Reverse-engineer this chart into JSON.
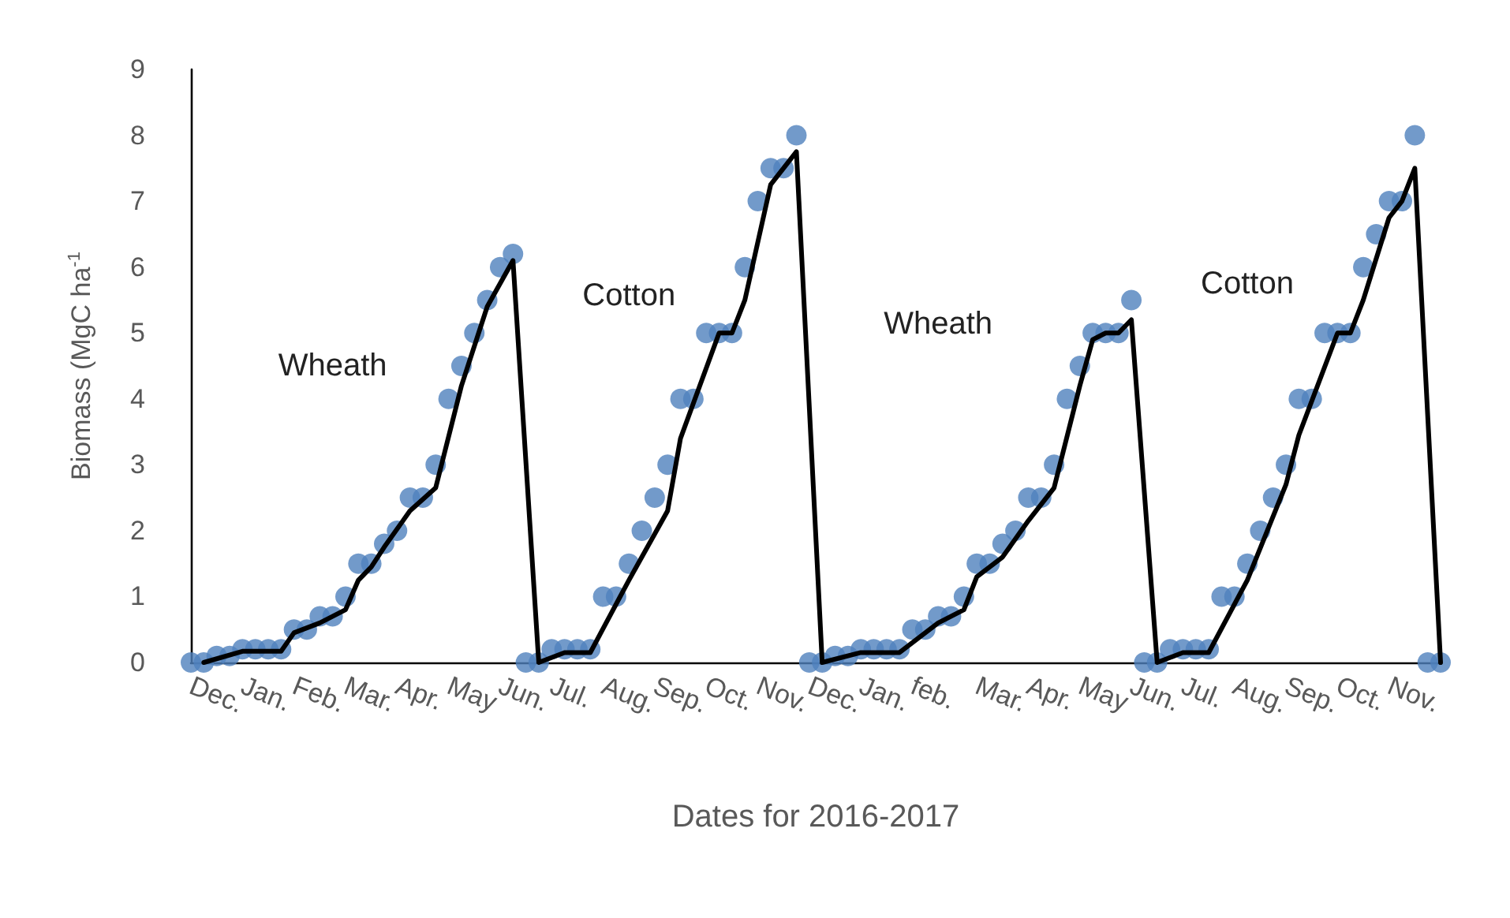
{
  "chart_data": {
    "type": "scatter",
    "xlabel": "Dates for 2016-2017",
    "ylabel": "Biomass (MgC ha$^{-1}$",
    "ylim": [
      0,
      9
    ],
    "yticks": [
      0,
      1,
      2,
      3,
      4,
      5,
      6,
      7,
      8,
      9
    ],
    "categories": [
      "Dec.",
      null,
      null,
      null,
      "Jan.",
      null,
      null,
      null,
      "Feb.",
      null,
      null,
      null,
      "Mar.",
      null,
      null,
      null,
      "Apr.",
      null,
      null,
      null,
      "May",
      null,
      null,
      null,
      "Jun.",
      null,
      null,
      null,
      "Jul.",
      null,
      null,
      null,
      "Aug.",
      null,
      null,
      null,
      "Sep.",
      null,
      null,
      null,
      "Oct.",
      null,
      null,
      null,
      "Nov.",
      null,
      null,
      null,
      "Dec.",
      null,
      null,
      null,
      "Jan.",
      null,
      null,
      null,
      "feb.",
      null,
      null,
      null,
      null,
      "Mar.",
      null,
      null,
      null,
      "Apr.",
      null,
      null,
      null,
      "May",
      null,
      null,
      null,
      "Jun.",
      null,
      null,
      null,
      "Jul.",
      null,
      null,
      null,
      "Aug.",
      null,
      null,
      null,
      "Sep.",
      null,
      null,
      null,
      "Oct.",
      null,
      null,
      null,
      "Nov.",
      null,
      null,
      null,
      null
    ],
    "grid": false,
    "annotations": [
      "Wheath",
      "Cotton",
      "Wheath",
      "Cotton"
    ],
    "series": [
      {
        "type": "scatter",
        "color": "#4f81bd",
        "marker": "circle",
        "values": [
          0,
          0,
          0.1,
          0.1,
          0.2,
          0.2,
          0.2,
          0.2,
          0.5,
          0.5,
          0.7,
          0.7,
          1.0,
          1.5,
          1.5,
          1.8,
          2.0,
          2.5,
          2.5,
          3.0,
          4.0,
          4.5,
          5.0,
          5.5,
          6.0,
          6.2,
          0,
          0,
          0.2,
          0.2,
          0.2,
          0.2,
          1.0,
          1.0,
          1.5,
          2.0,
          2.5,
          3.0,
          4.0,
          4.0,
          5.0,
          5.0,
          5.0,
          6.0,
          7.0,
          7.5,
          7.5,
          8.0,
          0,
          0,
          0.1,
          0.1,
          0.2,
          0.2,
          0.2,
          0.2,
          0.5,
          0.5,
          0.7,
          0.7,
          1.0,
          1.5,
          1.5,
          1.8,
          2.0,
          2.5,
          2.5,
          3.0,
          4.0,
          4.5,
          5.0,
          5.0,
          5.0,
          5.5,
          0,
          0,
          0.2,
          0.2,
          0.2,
          0.2,
          1.0,
          1.0,
          1.5,
          2.0,
          2.5,
          3.0,
          4.0,
          4.0,
          5.0,
          5.0,
          5.0,
          6.0,
          6.5,
          7.0,
          7.0,
          8.0,
          0,
          0
        ]
      },
      {
        "type": "line",
        "color": "#000000",
        "marker": "none",
        "line_style": "solid",
        "values": [
          null,
          0,
          null,
          null,
          0.17,
          null,
          null,
          0.17,
          0.45,
          null,
          0.6,
          null,
          0.8,
          1.25,
          1.45,
          1.75,
          null,
          2.3,
          null,
          2.65,
          null,
          4.2,
          null,
          5.4,
          null,
          6.1,
          null,
          0,
          null,
          0.15,
          null,
          0.15,
          null,
          null,
          1.25,
          null,
          null,
          2.3,
          3.4,
          null,
          null,
          5.0,
          5.0,
          5.5,
          null,
          7.25,
          null,
          7.75,
          null,
          0,
          null,
          null,
          0.15,
          null,
          null,
          0.15,
          null,
          null,
          0.6,
          null,
          0.8,
          1.3,
          null,
          1.6,
          null,
          2.15,
          null,
          2.65,
          null,
          4.2,
          4.9,
          5.0,
          5.0,
          5.2,
          null,
          0,
          null,
          0.15,
          null,
          0.15,
          null,
          null,
          1.25,
          null,
          null,
          2.7,
          3.45,
          null,
          null,
          5.0,
          5.0,
          5.5,
          null,
          6.75,
          7.0,
          7.5,
          null,
          0
        ]
      }
    ]
  }
}
